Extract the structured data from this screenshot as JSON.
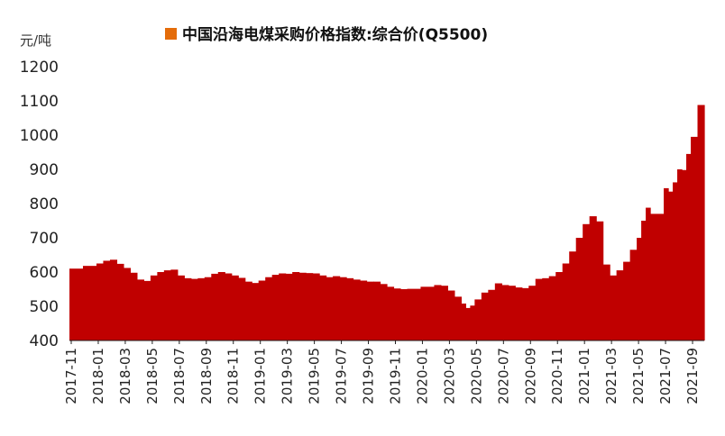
{
  "chart_data": {
    "type": "bar",
    "unit_label": "元/吨",
    "legend": "中国沿海电煤采购价格指数:综合价(Q5500)",
    "legend_position": "top",
    "color": "#c00000",
    "legend_swatch_color": "#e46c0a",
    "ylim": [
      400,
      1200
    ],
    "yticks": [
      400,
      500,
      600,
      700,
      800,
      900,
      1000,
      1100,
      1200
    ],
    "grid": false,
    "xlim": [
      "2017-11",
      "2021-09"
    ],
    "xtick_labels": [
      "2017-11",
      "2018-01",
      "2018-03",
      "2018-05",
      "2018-07",
      "2018-09",
      "2018-11",
      "2019-01",
      "2019-03",
      "2019-05",
      "2019-07",
      "2019-09",
      "2019-11",
      "2020-01",
      "2020-03",
      "2020-05",
      "2020-07",
      "2020-09",
      "2020-11",
      "2021-01",
      "2021-03",
      "2021-05",
      "2021-07",
      "2021-09"
    ],
    "series": [
      {
        "points": [
          [
            "2017-11",
            610
          ],
          [
            "2017-12",
            618
          ],
          [
            "2018-01",
            625
          ],
          [
            "2018-01",
            633
          ],
          [
            "2018-02",
            636
          ],
          [
            "2018-02",
            624
          ],
          [
            "2018-03",
            612
          ],
          [
            "2018-03",
            598
          ],
          [
            "2018-04",
            578
          ],
          [
            "2018-04",
            574
          ],
          [
            "2018-05",
            590
          ],
          [
            "2018-05",
            600
          ],
          [
            "2018-06",
            605
          ],
          [
            "2018-06",
            607
          ],
          [
            "2018-07",
            590
          ],
          [
            "2018-07",
            582
          ],
          [
            "2018-08",
            580
          ],
          [
            "2018-08",
            582
          ],
          [
            "2018-09",
            585
          ],
          [
            "2018-09",
            595
          ],
          [
            "2018-10",
            600
          ],
          [
            "2018-10",
            596
          ],
          [
            "2018-11",
            590
          ],
          [
            "2018-11",
            583
          ],
          [
            "2018-12",
            572
          ],
          [
            "2018-12",
            568
          ],
          [
            "2019-01",
            575
          ],
          [
            "2019-01",
            585
          ],
          [
            "2019-02",
            592
          ],
          [
            "2019-02",
            596
          ],
          [
            "2019-03",
            595
          ],
          [
            "2019-03",
            600
          ],
          [
            "2019-04",
            598
          ],
          [
            "2019-04",
            597
          ],
          [
            "2019-05",
            596
          ],
          [
            "2019-05",
            590
          ],
          [
            "2019-06",
            585
          ],
          [
            "2019-06",
            588
          ],
          [
            "2019-07",
            585
          ],
          [
            "2019-07",
            582
          ],
          [
            "2019-08",
            578
          ],
          [
            "2019-08",
            575
          ],
          [
            "2019-09",
            572
          ],
          [
            "2019-09",
            572
          ],
          [
            "2019-10",
            565
          ],
          [
            "2019-10",
            557
          ],
          [
            "2019-11",
            552
          ],
          [
            "2019-11",
            550
          ],
          [
            "2019-12",
            551
          ],
          [
            "2020-01",
            557
          ],
          [
            "2020-02",
            562
          ],
          [
            "2020-02",
            560
          ],
          [
            "2020-03",
            546
          ],
          [
            "2020-03",
            528
          ],
          [
            "2020-04",
            508
          ],
          [
            "2020-04",
            495
          ],
          [
            "2020-04",
            502
          ],
          [
            "2020-05",
            520
          ],
          [
            "2020-05",
            540
          ],
          [
            "2020-06",
            548
          ],
          [
            "2020-06",
            567
          ],
          [
            "2020-07",
            562
          ],
          [
            "2020-07",
            560
          ],
          [
            "2020-08",
            555
          ],
          [
            "2020-08",
            553
          ],
          [
            "2020-09",
            560
          ],
          [
            "2020-09",
            580
          ],
          [
            "2020-10",
            582
          ],
          [
            "2020-10",
            588
          ],
          [
            "2020-11",
            600
          ],
          [
            "2020-11",
            625
          ],
          [
            "2020-12",
            660
          ],
          [
            "2020-12",
            700
          ],
          [
            "2021-01",
            740
          ],
          [
            "2021-01",
            763
          ],
          [
            "2021-02",
            748
          ],
          [
            "2021-02",
            622
          ],
          [
            "2021-03",
            590
          ],
          [
            "2021-03",
            605
          ],
          [
            "2021-04",
            630
          ],
          [
            "2021-04",
            665
          ],
          [
            "2021-05",
            700
          ],
          [
            "2021-05",
            750
          ],
          [
            "2021-05",
            788
          ],
          [
            "2021-06",
            770
          ],
          [
            "2021-07",
            845
          ],
          [
            "2021-07",
            835
          ],
          [
            "2021-07",
            862
          ],
          [
            "2021-08",
            900
          ],
          [
            "2021-08",
            898
          ],
          [
            "2021-08",
            945
          ],
          [
            "2021-09",
            995
          ],
          [
            "2021-09",
            1088
          ]
        ]
      }
    ]
  }
}
